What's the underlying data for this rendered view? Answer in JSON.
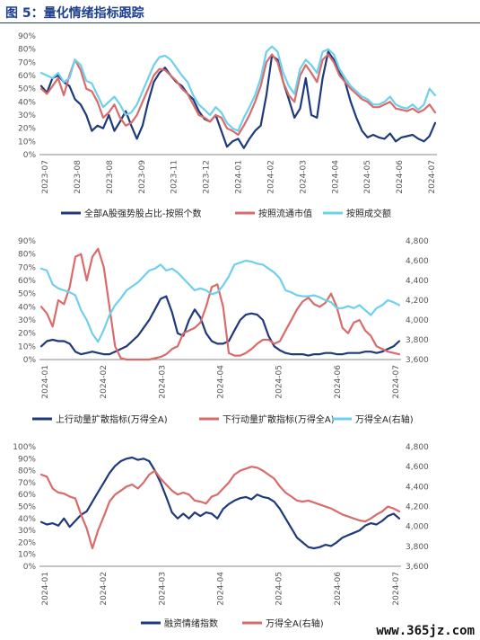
{
  "figure": {
    "title": "图 5：量化情绪指标跟踪"
  },
  "watermark": "www.365jz.com",
  "colors": {
    "navy": "#1f3a7a",
    "red": "#d96b6b",
    "lightblue": "#6fd0ec",
    "title": "#1f3f8f"
  },
  "chart_data": [
    {
      "type": "line",
      "title": "",
      "x_labels": [
        "2023-07",
        "2023-08",
        "2023-08",
        "2023-09",
        "2023-11",
        "2023-12",
        "2024-01",
        "2024-02",
        "2024-03",
        "2024-04",
        "2024-05",
        "2024-06",
        "2024-07"
      ],
      "y_ticks": [
        "0%",
        "10%",
        "20%",
        "30%",
        "40%",
        "50%",
        "60%",
        "70%",
        "80%",
        "90%"
      ],
      "ylim": [
        0,
        90
      ],
      "grid": false,
      "legend_position": "bottom",
      "series": [
        {
          "name": "全部A股强势股占比-按照个数",
          "color": "#1f3a7a",
          "values": [
            52,
            47,
            58,
            60,
            55,
            52,
            42,
            38,
            30,
            18,
            22,
            20,
            30,
            18,
            25,
            33,
            22,
            12,
            22,
            40,
            55,
            62,
            66,
            60,
            55,
            52,
            46,
            42,
            33,
            27,
            25,
            30,
            18,
            6,
            10,
            12,
            5,
            12,
            18,
            22,
            45,
            75,
            72,
            55,
            42,
            28,
            35,
            58,
            30,
            28,
            58,
            78,
            72,
            62,
            55,
            40,
            28,
            18,
            13,
            15,
            13,
            12,
            16,
            10,
            13,
            14,
            15,
            12,
            10,
            14,
            24
          ]
        },
        {
          "name": "按照流通市值",
          "color": "#d96b6b",
          "values": [
            50,
            46,
            52,
            58,
            45,
            60,
            72,
            64,
            50,
            48,
            40,
            28,
            32,
            38,
            28,
            22,
            24,
            30,
            40,
            50,
            60,
            65,
            64,
            60,
            56,
            50,
            46,
            38,
            30,
            28,
            25,
            30,
            28,
            20,
            18,
            15,
            22,
            30,
            40,
            52,
            70,
            76,
            70,
            55,
            45,
            40,
            60,
            68,
            62,
            55,
            72,
            76,
            70,
            60,
            55,
            50,
            46,
            42,
            40,
            36,
            36,
            38,
            40,
            35,
            34,
            33,
            35,
            32,
            34,
            38,
            32
          ]
        },
        {
          "name": "按照成交额",
          "color": "#6fd0ec",
          "values": [
            62,
            60,
            58,
            62,
            55,
            58,
            72,
            68,
            56,
            54,
            45,
            36,
            40,
            44,
            38,
            30,
            32,
            38,
            48,
            58,
            68,
            74,
            75,
            72,
            66,
            60,
            55,
            45,
            38,
            34,
            30,
            36,
            32,
            24,
            20,
            18,
            28,
            36,
            45,
            58,
            78,
            82,
            78,
            62,
            52,
            46,
            65,
            72,
            68,
            62,
            78,
            80,
            76,
            65,
            58,
            52,
            48,
            44,
            42,
            38,
            38,
            40,
            44,
            38,
            36,
            35,
            38,
            34,
            38,
            50,
            45
          ]
        }
      ]
    },
    {
      "type": "line",
      "title": "",
      "x_labels": [
        "2024-01",
        "2024-02",
        "2024-03",
        "2024-04",
        "2024-05",
        "2024-06",
        "2024-07"
      ],
      "y_ticks": [
        "0%",
        "10%",
        "20%",
        "30%",
        "40%",
        "50%",
        "60%",
        "70%",
        "80%",
        "90%"
      ],
      "y2_ticks": [
        "3,600",
        "3,800",
        "4,000",
        "4,200",
        "4,400",
        "4,600",
        "4,800"
      ],
      "ylim": [
        0,
        90
      ],
      "y2lim": [
        3600,
        4800
      ],
      "grid": false,
      "legend_position": "bottom",
      "series": [
        {
          "name": "上行动量扩散指标(万得全A)",
          "axis": "left",
          "color": "#1f3a7a",
          "values": [
            10,
            14,
            15,
            14,
            14,
            12,
            6,
            4,
            5,
            6,
            5,
            4,
            4,
            6,
            8,
            10,
            14,
            18,
            24,
            30,
            38,
            46,
            48,
            36,
            20,
            18,
            30,
            38,
            32,
            20,
            14,
            12,
            12,
            14,
            22,
            30,
            34,
            35,
            34,
            30,
            18,
            10,
            7,
            5,
            4,
            4,
            4,
            3,
            4,
            4,
            5,
            5,
            4,
            4,
            5,
            5,
            5,
            6,
            6,
            5,
            6,
            8,
            10,
            14
          ]
        },
        {
          "name": "下行动量扩散指标(万得全A)",
          "axis": "left",
          "color": "#d96b6b",
          "values": [
            40,
            35,
            25,
            45,
            42,
            55,
            78,
            80,
            60,
            78,
            84,
            70,
            40,
            10,
            1,
            0,
            0,
            0,
            0,
            0,
            1,
            2,
            4,
            8,
            10,
            20,
            22,
            24,
            28,
            40,
            55,
            57,
            40,
            5,
            3,
            3,
            5,
            8,
            12,
            15,
            15,
            12,
            14,
            22,
            30,
            38,
            44,
            47,
            42,
            40,
            43,
            50,
            40,
            24,
            20,
            28,
            30,
            22,
            18,
            10,
            8,
            6,
            5,
            4
          ]
        },
        {
          "name": "万得全A(右轴)",
          "axis": "right",
          "color": "#6fd0ec",
          "values": [
            4520,
            4500,
            4360,
            4320,
            4300,
            4280,
            4250,
            4100,
            4000,
            3860,
            3780,
            3900,
            4050,
            4150,
            4220,
            4300,
            4340,
            4380,
            4440,
            4500,
            4520,
            4560,
            4500,
            4520,
            4480,
            4420,
            4360,
            4300,
            4320,
            4300,
            4260,
            4280,
            4350,
            4440,
            4560,
            4580,
            4600,
            4590,
            4570,
            4560,
            4520,
            4480,
            4420,
            4300,
            4280,
            4250,
            4240,
            4240,
            4250,
            4230,
            4200,
            4180,
            4120,
            4120,
            4140,
            4120,
            4150,
            4100,
            4050,
            4120,
            4150,
            4200,
            4180,
            4150
          ]
        }
      ]
    },
    {
      "type": "line",
      "title": "",
      "x_labels": [
        "2024-01",
        "2024-02",
        "2024-03",
        "2024-04",
        "2024-05",
        "2024-06",
        "2024-07"
      ],
      "y_ticks": [
        "0%",
        "10%",
        "20%",
        "30%",
        "40%",
        "50%",
        "60%",
        "70%",
        "80%",
        "90%",
        "100%"
      ],
      "y2_ticks": [
        "3,600",
        "3,800",
        "4,000",
        "4,200",
        "4,400",
        "4,600",
        "4,800"
      ],
      "ylim": [
        0,
        100
      ],
      "y2lim": [
        3600,
        4800
      ],
      "grid": false,
      "legend_position": "bottom",
      "series": [
        {
          "name": "融资情绪指数",
          "axis": "left",
          "color": "#1f3a7a",
          "values": [
            37,
            35,
            36,
            34,
            40,
            33,
            38,
            43,
            46,
            54,
            62,
            70,
            78,
            84,
            88,
            90,
            91,
            89,
            90,
            88,
            80,
            70,
            58,
            45,
            40,
            44,
            40,
            45,
            42,
            45,
            44,
            40,
            48,
            52,
            55,
            57,
            58,
            56,
            60,
            58,
            57,
            54,
            48,
            40,
            32,
            24,
            20,
            16,
            15,
            16,
            18,
            17,
            20,
            24,
            26,
            28,
            30,
            34,
            36,
            35,
            38,
            42,
            44,
            40
          ]
        },
        {
          "name": "万得全A(右轴)",
          "axis": "right",
          "color": "#d96b6b",
          "values": [
            4520,
            4500,
            4380,
            4340,
            4330,
            4300,
            4280,
            4120,
            3980,
            3780,
            3960,
            4100,
            4250,
            4320,
            4360,
            4400,
            4420,
            4380,
            4440,
            4520,
            4560,
            4480,
            4420,
            4360,
            4320,
            4340,
            4320,
            4260,
            4250,
            4230,
            4300,
            4320,
            4380,
            4440,
            4520,
            4560,
            4580,
            4600,
            4590,
            4560,
            4520,
            4480,
            4400,
            4340,
            4300,
            4260,
            4250,
            4260,
            4240,
            4220,
            4200,
            4180,
            4150,
            4120,
            4100,
            4080,
            4060,
            4050,
            4080,
            4120,
            4150,
            4200,
            4180,
            4150
          ]
        }
      ]
    }
  ]
}
